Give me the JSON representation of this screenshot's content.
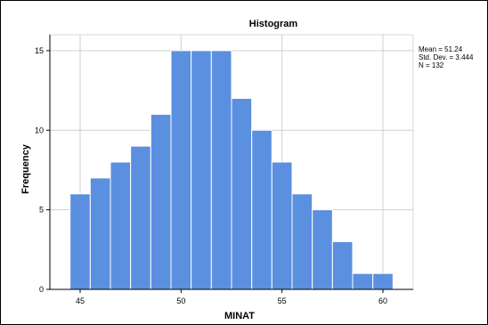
{
  "chart_data": {
    "type": "bar",
    "subtype": "histogram",
    "title": "Histogram",
    "xlabel": "MINAT",
    "ylabel": "Frequency",
    "bin_width": 1,
    "bins": [
      {
        "x0": 44.5,
        "x1": 45.5,
        "count": 6
      },
      {
        "x0": 45.5,
        "x1": 46.5,
        "count": 7
      },
      {
        "x0": 46.5,
        "x1": 47.5,
        "count": 8
      },
      {
        "x0": 47.5,
        "x1": 48.5,
        "count": 9
      },
      {
        "x0": 48.5,
        "x1": 49.5,
        "count": 11
      },
      {
        "x0": 49.5,
        "x1": 50.5,
        "count": 15
      },
      {
        "x0": 50.5,
        "x1": 51.5,
        "count": 15
      },
      {
        "x0": 51.5,
        "x1": 52.5,
        "count": 15
      },
      {
        "x0": 52.5,
        "x1": 53.5,
        "count": 12
      },
      {
        "x0": 53.5,
        "x1": 54.5,
        "count": 10
      },
      {
        "x0": 54.5,
        "x1": 55.5,
        "count": 8
      },
      {
        "x0": 55.5,
        "x1": 56.5,
        "count": 6
      },
      {
        "x0": 56.5,
        "x1": 57.5,
        "count": 5
      },
      {
        "x0": 57.5,
        "x1": 58.5,
        "count": 3
      },
      {
        "x0": 58.5,
        "x1": 59.5,
        "count": 1
      },
      {
        "x0": 59.5,
        "x1": 60.5,
        "count": 1
      }
    ],
    "x_ticks": [
      45,
      50,
      55,
      60
    ],
    "y_ticks": [
      0,
      5,
      10,
      15
    ],
    "xlim": [
      43.5,
      61.5
    ],
    "ylim": [
      0,
      16
    ],
    "grid": true,
    "bar_color": "#5b8fe0",
    "bar_edge_color": "#ffffff",
    "stats": {
      "mean_text": "Mean = 51.24",
      "std_text": "Std. Dev. = 3.444",
      "n_text": "N = 132"
    }
  }
}
